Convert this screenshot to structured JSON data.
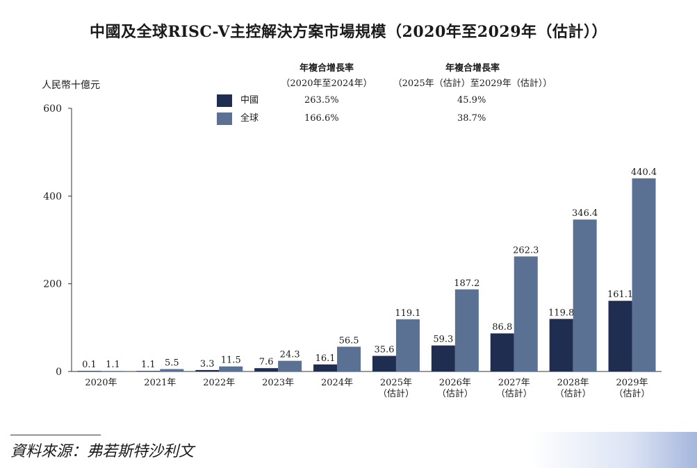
{
  "colors": {
    "china": "#1f2d50",
    "global": "#5a7193",
    "axis": "#333333"
  },
  "chart_data": {
    "type": "bar",
    "title": "中國及全球RISC-V主控解決方案市場規模（2020年至2029年（估計））",
    "ylabel": "人民幣十億元",
    "ylim": [
      0,
      600
    ],
    "yticks": [
      "0",
      "200",
      "400",
      "600"
    ],
    "categories": [
      {
        "year": "2020年",
        "note": ""
      },
      {
        "year": "2021年",
        "note": ""
      },
      {
        "year": "2022年",
        "note": ""
      },
      {
        "year": "2023年",
        "note": ""
      },
      {
        "year": "2024年",
        "note": ""
      },
      {
        "year": "2025年",
        "note": "（估計）"
      },
      {
        "year": "2026年",
        "note": "（估計）"
      },
      {
        "year": "2027年",
        "note": "（估計）"
      },
      {
        "year": "2028年",
        "note": "（估計）"
      },
      {
        "year": "2029年",
        "note": "（估計）"
      }
    ],
    "series": [
      {
        "name": "中國",
        "values": [
          0.1,
          1.1,
          3.3,
          7.6,
          16.1,
          35.6,
          59.3,
          86.8,
          119.8,
          161.1
        ],
        "labels": [
          "0.1",
          "1.1",
          "3.3",
          "7.6",
          "16.1",
          "35.6",
          "59.3",
          "86.8",
          "119.8",
          "161.1"
        ]
      },
      {
        "name": "全球",
        "values": [
          1.1,
          5.5,
          11.5,
          24.3,
          56.5,
          119.1,
          187.2,
          262.3,
          346.4,
          440.4
        ],
        "labels": [
          "1.1",
          "5.5",
          "11.5",
          "24.3",
          "56.5",
          "119.1",
          "187.2",
          "262.3",
          "346.4",
          "440.4"
        ]
      }
    ],
    "grid": false,
    "legend": "top-left"
  },
  "cagr": {
    "head1": {
      "title": "年複合增長率",
      "period": "（2020年至2024年）"
    },
    "head2": {
      "title": "年複合增長率",
      "period": "（2025年（估計）至2029年（估計））"
    },
    "rows": [
      {
        "label": "中國",
        "v1": "263.5%",
        "v2": "45.9%"
      },
      {
        "label": "全球",
        "v1": "166.6%",
        "v2": "38.7%"
      }
    ]
  },
  "source": "資料來源：弗若斯特沙利文"
}
